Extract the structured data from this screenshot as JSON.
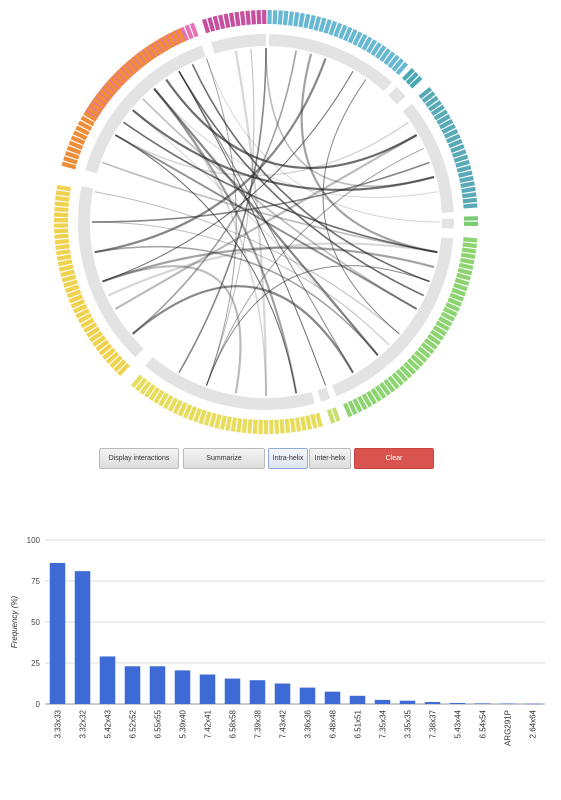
{
  "circos": {
    "segment_colors": [
      "#c64f9e",
      "#e571b6",
      "#68b8d3",
      "#4aa7b4",
      "#58aab6",
      "#7bcb72",
      "#8cd46f",
      "#c8de6e",
      "#e8dc5c",
      "#f0d24f",
      "#ef8d38"
    ]
  },
  "controls": {
    "display_label": "Display interactions",
    "summarize_label": "Summarize",
    "intra_label": "Intra-helix",
    "inter_label": "Inter-helix",
    "clear_label": "Clear"
  },
  "chart_data": {
    "type": "bar",
    "categories": [
      "3.33x33",
      "3.32x32",
      "5.42x43",
      "6.52x52",
      "6.55x55",
      "5.39x40",
      "7.42x41",
      "6.58x58",
      "7.39x38",
      "7.43x42",
      "3.36x36",
      "6.48x48",
      "6.51x51",
      "7.35x34",
      "3.35x35",
      "7.38x37",
      "5.43x44",
      "6.54x54",
      "ARG291P",
      "2.64x64"
    ],
    "values": [
      86,
      81,
      29,
      23,
      23,
      20.5,
      18,
      15.5,
      14.5,
      12.5,
      10,
      7.5,
      5,
      2.5,
      2,
      1.2,
      0.6,
      0.4,
      0.3,
      0.2
    ],
    "ylabel": "Frequency (%)",
    "ylim": [
      0,
      100
    ],
    "yticks": [
      0,
      25,
      50,
      75,
      100
    ],
    "grid": true,
    "bar_color": "#3d6ad4"
  }
}
